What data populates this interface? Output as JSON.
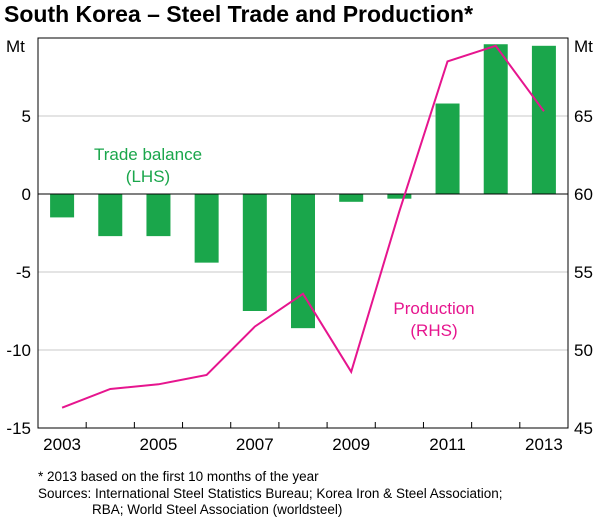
{
  "chart_data": {
    "type": "bar+line",
    "title": "South Korea – Steel Trade and Production*",
    "left_axis_unit": "Mt",
    "right_axis_unit": "Mt",
    "left_ylim": [
      -15,
      10
    ],
    "right_ylim": [
      45,
      70
    ],
    "left_ticks": [
      5,
      0,
      -5,
      -10,
      -15
    ],
    "right_ticks": [
      65,
      60,
      55,
      50,
      45
    ],
    "x_tick_labels": [
      "2003",
      "2005",
      "2007",
      "2009",
      "2011",
      "2013"
    ],
    "series": [
      {
        "name": "Trade balance",
        "axis": "LHS",
        "label_line1": "Trade balance",
        "label_line2": "(LHS)",
        "type": "bar",
        "color": "#1aa64b",
        "x": [
          2003,
          2004,
          2005,
          2006,
          2007,
          2008,
          2009,
          2010,
          2011,
          2012,
          2013
        ],
        "values": [
          -1.5,
          -2.7,
          -2.7,
          -4.4,
          -7.5,
          -8.6,
          -0.5,
          -0.3,
          5.8,
          9.6,
          9.5
        ]
      },
      {
        "name": "Production",
        "axis": "RHS",
        "label_line1": "Production",
        "label_line2": "(RHS)",
        "type": "line",
        "color": "#e6158e",
        "x": [
          2003,
          2004,
          2005,
          2006,
          2007,
          2008,
          2009,
          2010,
          2011,
          2012,
          2013
        ],
        "values": [
          46.3,
          47.5,
          47.8,
          48.4,
          51.5,
          53.6,
          48.6,
          58.9,
          68.5,
          69.5,
          65.3
        ]
      }
    ],
    "footnote": "*    2013 based on the first 10 months of the year",
    "sources_line1": "Sources: International Steel Statistics Bureau; Korea Iron & Steel Association;",
    "sources_line2": "RBA; World Steel Association (worldsteel)"
  }
}
